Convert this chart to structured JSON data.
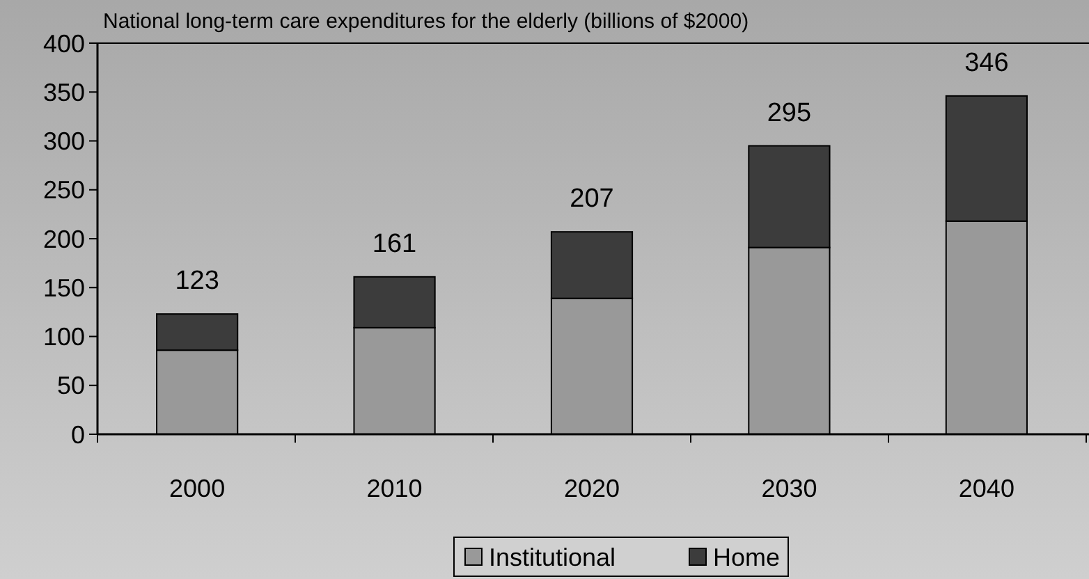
{
  "chart_data": {
    "type": "bar",
    "title": "National long-term care expenditures for the elderly (billions of $2000)",
    "categories": [
      "2000",
      "2010",
      "2020",
      "2030",
      "2040"
    ],
    "stacked": true,
    "series": [
      {
        "name": "Institutional",
        "color": "#999999",
        "values": [
          86,
          109,
          139,
          191,
          218
        ]
      },
      {
        "name": "Home",
        "color": "#3c3c3c",
        "values": [
          37,
          52,
          68,
          104,
          128
        ]
      }
    ],
    "totals": [
      "123",
      "161",
      "207",
      "295",
      "346"
    ],
    "ylim": [
      0,
      400
    ],
    "yticks": [
      0,
      50,
      100,
      150,
      200,
      250,
      300,
      350,
      400
    ],
    "grid": false,
    "legend": "bottom"
  }
}
